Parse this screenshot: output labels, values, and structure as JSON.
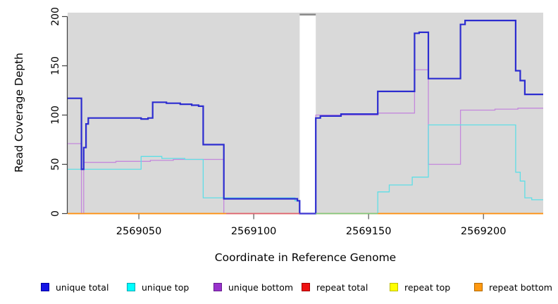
{
  "chart_data": {
    "type": "line",
    "subtype": "step-coverage",
    "title": "",
    "xlabel": "Coordinate in Reference Genome",
    "ylabel": "Read Coverage Depth",
    "xlim": [
      2569019,
      2569226
    ],
    "ylim": [
      0,
      205
    ],
    "x_ticks": [
      2569050,
      2569100,
      2569150,
      2569200
    ],
    "y_ticks": [
      0,
      50,
      100,
      150,
      200
    ],
    "grid": false,
    "panel_background": "#d9d9d9",
    "gap": {
      "from": 2569120,
      "to": 2569127,
      "fill": "#ffffff",
      "cap_color": "#8a8a8a"
    },
    "series": [
      {
        "name": "unique total",
        "key": "unique-total",
        "color": "#2c2cd0",
        "width": 2.2,
        "points": [
          [
            2569019,
            117
          ],
          [
            2569025,
            45
          ],
          [
            2569026,
            67
          ],
          [
            2569027,
            91
          ],
          [
            2569028,
            97
          ],
          [
            2569051,
            96
          ],
          [
            2569054,
            97
          ],
          [
            2569056,
            113
          ],
          [
            2569062,
            112
          ],
          [
            2569068,
            111
          ],
          [
            2569073,
            110
          ],
          [
            2569076,
            109
          ],
          [
            2569078,
            70
          ],
          [
            2569087,
            15
          ],
          [
            2569119,
            13
          ],
          [
            2569120,
            0
          ],
          [
            2569127,
            97
          ],
          [
            2569129,
            99
          ],
          [
            2569138,
            101
          ],
          [
            2569154,
            124
          ],
          [
            2569170,
            183
          ],
          [
            2569172,
            184
          ],
          [
            2569176,
            137
          ],
          [
            2569190,
            192
          ],
          [
            2569192,
            196
          ],
          [
            2569214,
            145
          ],
          [
            2569216,
            135
          ],
          [
            2569218,
            121
          ],
          [
            2569226,
            121
          ]
        ]
      },
      {
        "name": "unique top",
        "key": "unique-top",
        "color": "#5fdee6",
        "width": 1.3,
        "points": [
          [
            2569019,
            45
          ],
          [
            2569051,
            58
          ],
          [
            2569060,
            56
          ],
          [
            2569070,
            55
          ],
          [
            2569078,
            16
          ],
          [
            2569118,
            13
          ],
          [
            2569120,
            0
          ],
          [
            2569154,
            22
          ],
          [
            2569159,
            29
          ],
          [
            2569169,
            37
          ],
          [
            2569176,
            90
          ],
          [
            2569214,
            42
          ],
          [
            2569216,
            33
          ],
          [
            2569218,
            16
          ],
          [
            2569221,
            14
          ],
          [
            2569226,
            14
          ]
        ]
      },
      {
        "name": "unique bottom",
        "key": "unique-bottom",
        "color": "#c488dc",
        "width": 1.3,
        "points": [
          [
            2569019,
            71
          ],
          [
            2569025,
            0
          ],
          [
            2569026,
            52
          ],
          [
            2569040,
            53
          ],
          [
            2569055,
            54
          ],
          [
            2569065,
            55
          ],
          [
            2569087,
            0
          ],
          [
            2569127,
            100
          ],
          [
            2569154,
            102
          ],
          [
            2569170,
            146
          ],
          [
            2569176,
            50
          ],
          [
            2569190,
            105
          ],
          [
            2569205,
            106
          ],
          [
            2569215,
            107
          ],
          [
            2569226,
            107
          ]
        ]
      },
      {
        "name": "repeat total",
        "key": "repeat-total",
        "color": "#dd2222",
        "width": 1.2,
        "points": [
          [
            2569019,
            0
          ],
          [
            2569226,
            0
          ]
        ]
      },
      {
        "name": "repeat top",
        "key": "repeat-top",
        "color": "#eeee22",
        "width": 1.2,
        "points": [
          [
            2569019,
            0
          ],
          [
            2569226,
            0
          ]
        ]
      },
      {
        "name": "repeat bottom",
        "key": "repeat-bottom",
        "color": "#ff8f0f",
        "width": 1.6,
        "points": [
          [
            2569019,
            0
          ],
          [
            2569226,
            0
          ]
        ]
      }
    ],
    "baseline_segments": [
      {
        "from": 2569019,
        "to": 2569088,
        "color": "#ff8f0f"
      },
      {
        "from": 2569088,
        "to": 2569120,
        "color": "#dd5f73"
      },
      {
        "from": 2569120,
        "to": 2569127,
        "color": "#4338d2"
      },
      {
        "from": 2569127,
        "to": 2569154,
        "color": "#7fc97f"
      },
      {
        "from": 2569154,
        "to": 2569226,
        "color": "#ff8f0f"
      }
    ],
    "legend_position": "bottom"
  },
  "legend": {
    "items": [
      {
        "label": "unique total",
        "fill": "#1414e6",
        "border": "#0000a0"
      },
      {
        "label": "unique top",
        "fill": "#00ffff",
        "border": "#00a8b4"
      },
      {
        "label": "unique bottom",
        "fill": "#9932cc",
        "border": "#661e8e"
      },
      {
        "label": "repeat total",
        "fill": "#ee1111",
        "border": "#a30000"
      },
      {
        "label": "repeat top",
        "fill": "#ffff00",
        "border": "#bdbd00"
      },
      {
        "label": "repeat bottom",
        "fill": "#ff9911",
        "border": "#b36a00"
      }
    ]
  }
}
